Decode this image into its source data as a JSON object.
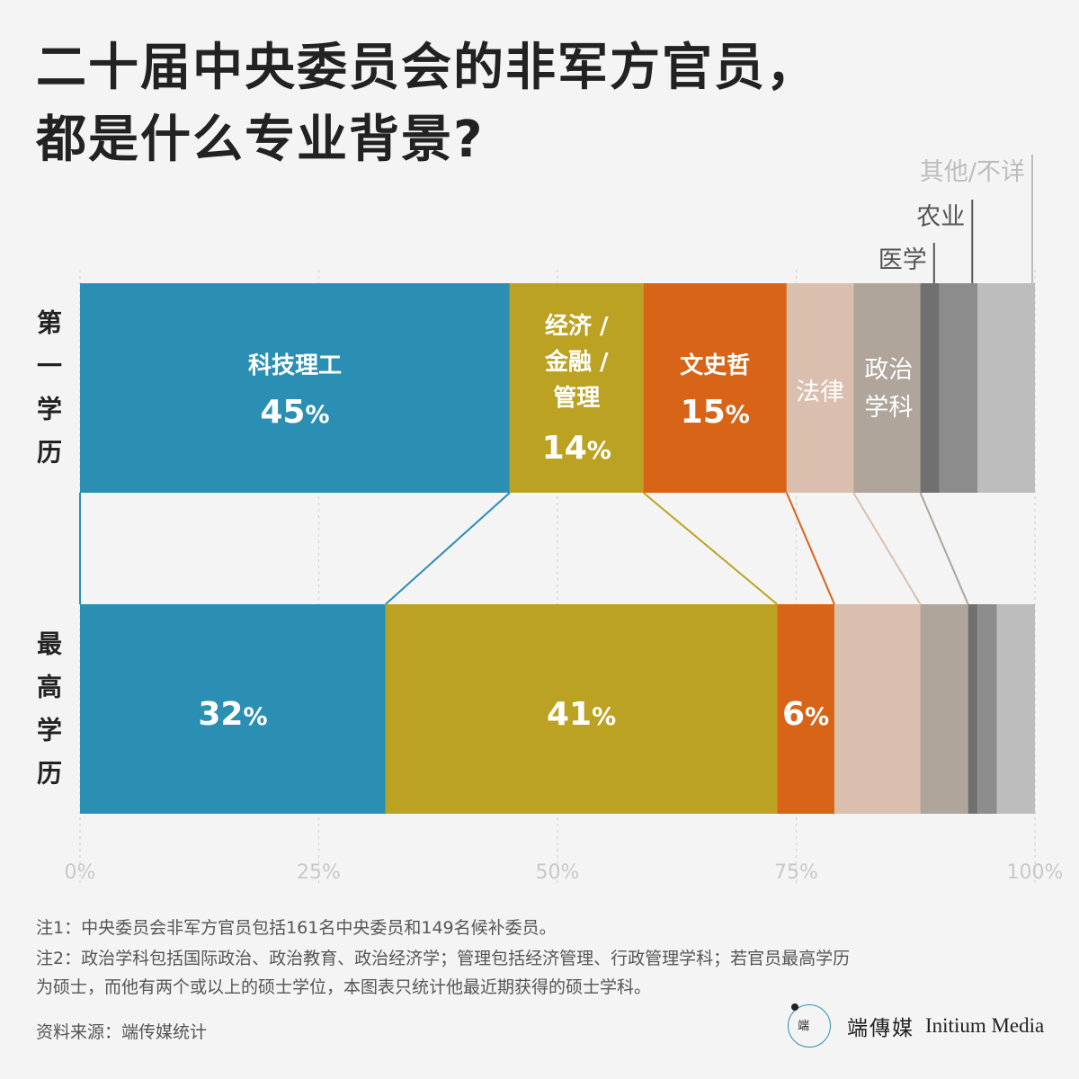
{
  "title": {
    "line1": "二十届中央委员会的非军方官员，",
    "line2": "都是什么专业背景?"
  },
  "chart_data": {
    "type": "bar",
    "orientation": "horizontal-stacked-100",
    "categories": [
      "第一学历",
      "最高学历"
    ],
    "xlim": [
      0,
      100
    ],
    "xticks": [
      "0%",
      "25%",
      "50%",
      "75%",
      "100%"
    ],
    "grid": true,
    "series": [
      {
        "name": "科技理工",
        "values": [
          45,
          32
        ],
        "color": "#2b8fb3",
        "labels": [
          "45%",
          "32%"
        ]
      },
      {
        "name": "经济 / 金融 / 管理",
        "values": [
          14,
          41
        ],
        "color": "#bca223",
        "labels": [
          "14%",
          "41%"
        ]
      },
      {
        "name": "文史哲",
        "values": [
          15,
          6
        ],
        "color": "#d86418",
        "labels": [
          "15%",
          "6%"
        ]
      },
      {
        "name": "法律",
        "values": [
          7,
          9
        ],
        "color": "#dabfae",
        "labels": [
          "",
          ""
        ]
      },
      {
        "name": "政治学科",
        "values": [
          7,
          5
        ],
        "color": "#afa59b",
        "labels": [
          "",
          ""
        ]
      },
      {
        "name": "医学",
        "values": [
          2,
          1
        ],
        "color": "#707070",
        "labels": [
          "",
          ""
        ]
      },
      {
        "name": "农业",
        "values": [
          4,
          2
        ],
        "color": "#8c8c8c",
        "labels": [
          "",
          ""
        ]
      },
      {
        "name": "其他/不详",
        "values": [
          6,
          4
        ],
        "color": "#bdbdbd",
        "labels": [
          "",
          ""
        ]
      }
    ],
    "segment_labels": {
      "science": "科技理工",
      "econ": [
        "经济 /",
        "金融 /",
        "管理"
      ],
      "humanities": "文史哲",
      "law": "法律",
      "politics": [
        "政治",
        "学科"
      ],
      "medicine": "医学",
      "agriculture": "农业",
      "other": "其他/不详"
    }
  },
  "notes": {
    "note1": "注1：中央委员会非军方官员包括161名中央委员和149名候补委员。",
    "note2_line1": "注2：政治学科包括国际政治、政治教育、政治经济学；管理包括经济管理、行政管理学科；若官员最高学历",
    "note2_line2": "为硕士，而他有两个或以上的硕士学位，本图表只统计他最近期获得的硕士学科。"
  },
  "source": "资料来源：端传媒统计",
  "brand": {
    "name_cn": "端傳媒",
    "name_en": "Initium Media",
    "logo_text": "端"
  }
}
